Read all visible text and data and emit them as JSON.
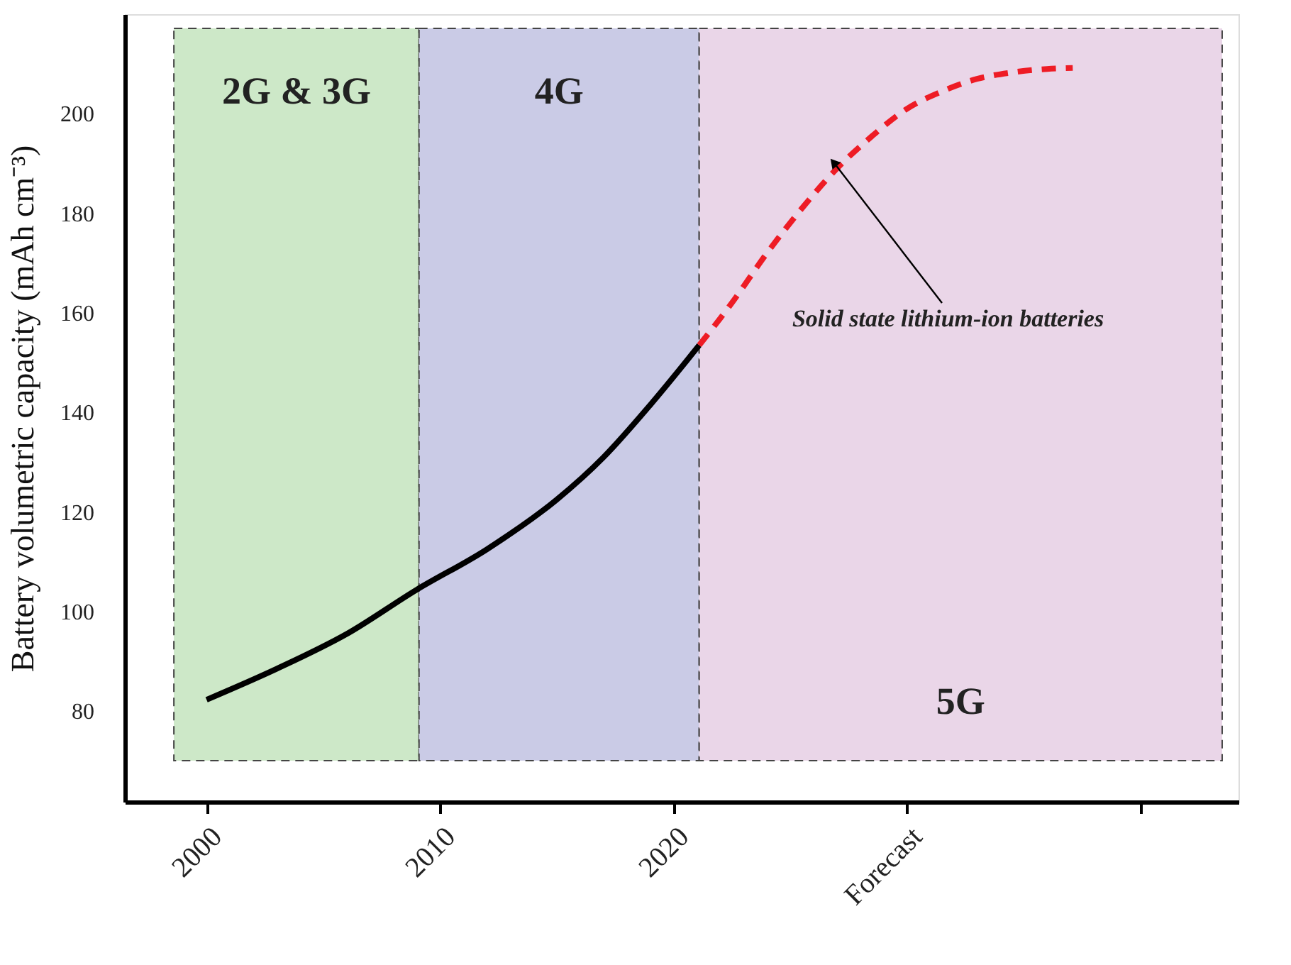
{
  "chart_data": {
    "type": "line",
    "ylabel": "Battery volumetric capacity (mAh cm⁻³)",
    "xlim": [
      1996.5,
      2044.2
    ],
    "ylim": [
      61.8,
      220
    ],
    "xticks": [
      2000,
      2010,
      2020,
      {
        "value": 2030,
        "label": "Forecast"
      },
      {
        "value": 2040,
        "label": null
      }
    ],
    "yticks": [
      80,
      100,
      120,
      140,
      160,
      180,
      200
    ],
    "grid": false,
    "series": [
      {
        "color": "#000000",
        "line_style": "solid",
        "x": [
          2000,
          2003,
          2006,
          2009,
          2012,
          2015,
          2017,
          2019,
          2021.1
        ],
        "values": [
          82.3,
          88.5,
          95.5,
          104.4,
          112.5,
          122.5,
          131,
          141.5,
          153.5
        ]
      },
      {
        "color": "#ee1c25",
        "line_style": "dashed",
        "x": [
          2021.1,
          2022.5,
          2024,
          2025.5,
          2027,
          2028.5,
          2030,
          2031.5,
          2033,
          2034.5,
          2036,
          2037.1
        ],
        "values": [
          153.5,
          162,
          172,
          181,
          189,
          195.5,
          201,
          204.5,
          207,
          208.3,
          209,
          209.2
        ]
      }
    ],
    "bands": [
      {
        "axis": "x",
        "from": 1998.6,
        "to": 2009.1,
        "label": "2G & 3G",
        "color": "#cde8c8"
      },
      {
        "axis": "x",
        "from": 2009.1,
        "to": 2021.1,
        "label": "4G",
        "color": "#cacbe6"
      },
      {
        "axis": "x",
        "from": 2021.1,
        "to": 2043.5,
        "label": "5G",
        "color": "#ead6e8"
      }
    ],
    "annotations": [
      {
        "text": "Solid state lithium-ion batteries",
        "x": 2026.9,
        "y": 190
      }
    ]
  }
}
